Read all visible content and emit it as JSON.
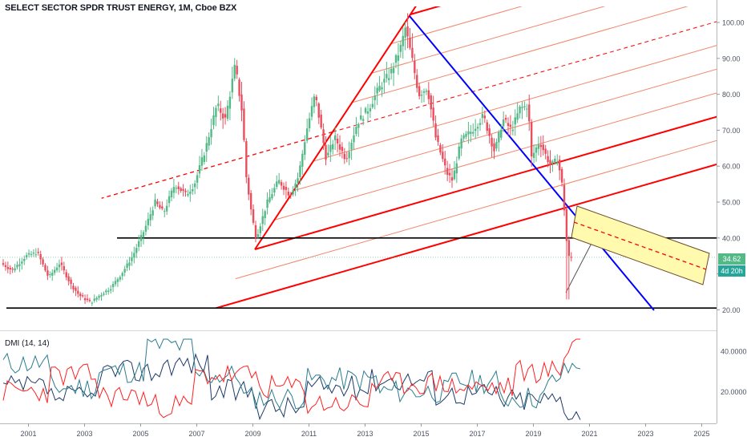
{
  "header": {
    "title": "SELECT SECTOR SPDR TRUST ENERGY, 1M, Cboe BZX",
    "indicator_label": "DMI (14, 14)"
  },
  "tags": {
    "last_price": "34.62",
    "countdown": "4d 20h"
  },
  "colors": {
    "up": "#53b987",
    "down": "#eb4d5c",
    "fork_median": "#ff0000",
    "fork_lines": "#f0876a",
    "trendline_blue": "#0000ff",
    "horizontal": "#000000",
    "rectangle_fill": "#fffaae",
    "price_tag": "#53b987",
    "countdown_tag": "#26a69a",
    "dmi_plus": "#2a7d8e",
    "dmi_minus": "#ff2020",
    "dmi_adx": "#1e3a68"
  },
  "chart_data": [
    {
      "type": "candlestick",
      "title": "SELECT SECTOR SPDR TRUST ENERGY, 1M, Cboe BZX",
      "xlabel": "",
      "ylabel": "",
      "x_tick_labels": [
        "2001",
        "2003",
        "2005",
        "2007",
        "2009",
        "2011",
        "2013",
        "2015",
        "2017",
        "2019",
        "2021",
        "2023",
        "2025"
      ],
      "y_tick_labels": [
        "20.00",
        "30.00",
        "40.00",
        "50.00",
        "60.00",
        "70.00",
        "80.00",
        "90.00",
        "100.00"
      ],
      "ylim": [
        15.5,
        104
      ],
      "xlim": [
        2000.1,
        2025
      ],
      "grid": false,
      "last_price": 34.62,
      "anchors": [
        [
          2000.1,
          33
        ],
        [
          2000.5,
          31
        ],
        [
          2001.0,
          35
        ],
        [
          2001.4,
          36
        ],
        [
          2001.8,
          29
        ],
        [
          2002.2,
          33
        ],
        [
          2002.6,
          27
        ],
        [
          2002.9,
          24
        ],
        [
          2003.3,
          22
        ],
        [
          2003.7,
          24.5
        ],
        [
          2004.0,
          26
        ],
        [
          2004.4,
          30
        ],
        [
          2004.8,
          35
        ],
        [
          2005.2,
          42
        ],
        [
          2005.6,
          50
        ],
        [
          2005.9,
          47
        ],
        [
          2006.3,
          55
        ],
        [
          2006.7,
          52
        ],
        [
          2007.0,
          55
        ],
        [
          2007.4,
          65
        ],
        [
          2007.8,
          77
        ],
        [
          2008.1,
          73
        ],
        [
          2008.45,
          88
        ],
        [
          2008.7,
          75
        ],
        [
          2008.85,
          57
        ],
        [
          2009.05,
          46
        ],
        [
          2009.2,
          40
        ],
        [
          2009.6,
          50
        ],
        [
          2010.0,
          56
        ],
        [
          2010.4,
          52
        ],
        [
          2010.7,
          57
        ],
        [
          2011.0,
          70
        ],
        [
          2011.3,
          80
        ],
        [
          2011.7,
          62
        ],
        [
          2012.0,
          68
        ],
        [
          2012.4,
          62
        ],
        [
          2012.8,
          72
        ],
        [
          2013.2,
          76
        ],
        [
          2013.6,
          82
        ],
        [
          2014.0,
          86
        ],
        [
          2014.4,
          94
        ],
        [
          2014.5,
          99
        ],
        [
          2014.75,
          90
        ],
        [
          2015.0,
          80
        ],
        [
          2015.3,
          82
        ],
        [
          2015.6,
          68
        ],
        [
          2016.0,
          58
        ],
        [
          2016.2,
          56
        ],
        [
          2016.5,
          67
        ],
        [
          2016.9,
          70
        ],
        [
          2017.3,
          74
        ],
        [
          2017.7,
          64
        ],
        [
          2018.0,
          73
        ],
        [
          2018.3,
          70
        ],
        [
          2018.6,
          76
        ],
        [
          2018.9,
          77
        ],
        [
          2019.0,
          62
        ],
        [
          2019.3,
          67
        ],
        [
          2019.7,
          60
        ],
        [
          2019.95,
          62
        ],
        [
          2020.1,
          55
        ],
        [
          2020.22,
          45
        ],
        [
          2020.3,
          35
        ],
        [
          2020.36,
          34.62
        ]
      ]
    },
    {
      "type": "line",
      "title": "DMI (14, 14)",
      "y_tick_labels": [
        "20.0000",
        "40.0000"
      ],
      "ylim": [
        5,
        48
      ],
      "series": []
    }
  ]
}
